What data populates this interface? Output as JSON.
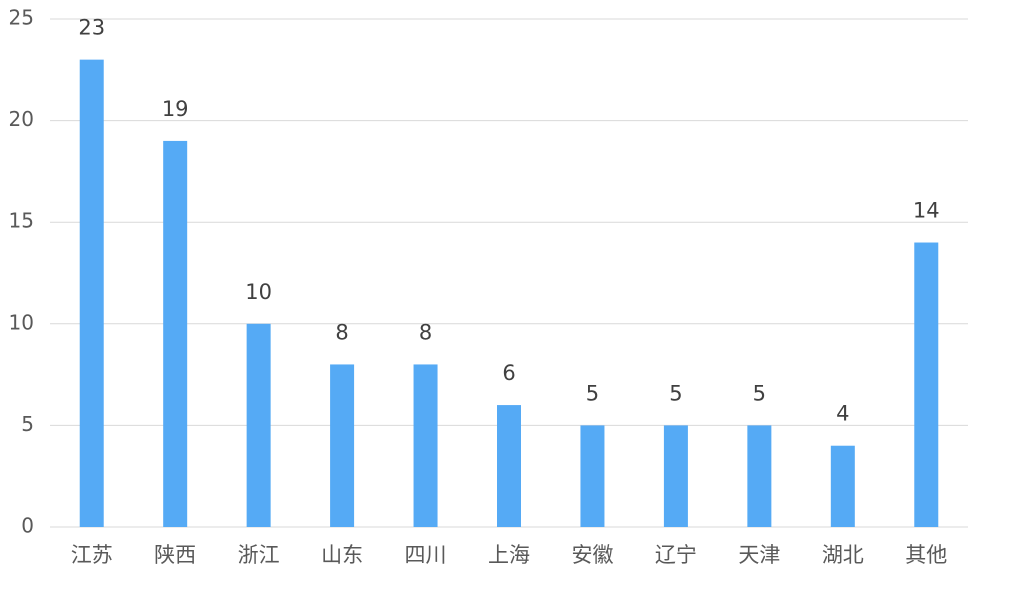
{
  "chart_data": {
    "type": "bar",
    "categories": [
      "江苏",
      "陕西",
      "浙江",
      "山东",
      "四川",
      "上海",
      "安徽",
      "辽宁",
      "天津",
      "湖北",
      "其他"
    ],
    "values": [
      23,
      19,
      10,
      8,
      8,
      6,
      5,
      5,
      5,
      4,
      14
    ],
    "color": "#55aaf5",
    "ylim": [
      0,
      25
    ],
    "yticks": [
      0,
      5,
      10,
      15,
      20,
      25
    ],
    "grid": true
  }
}
